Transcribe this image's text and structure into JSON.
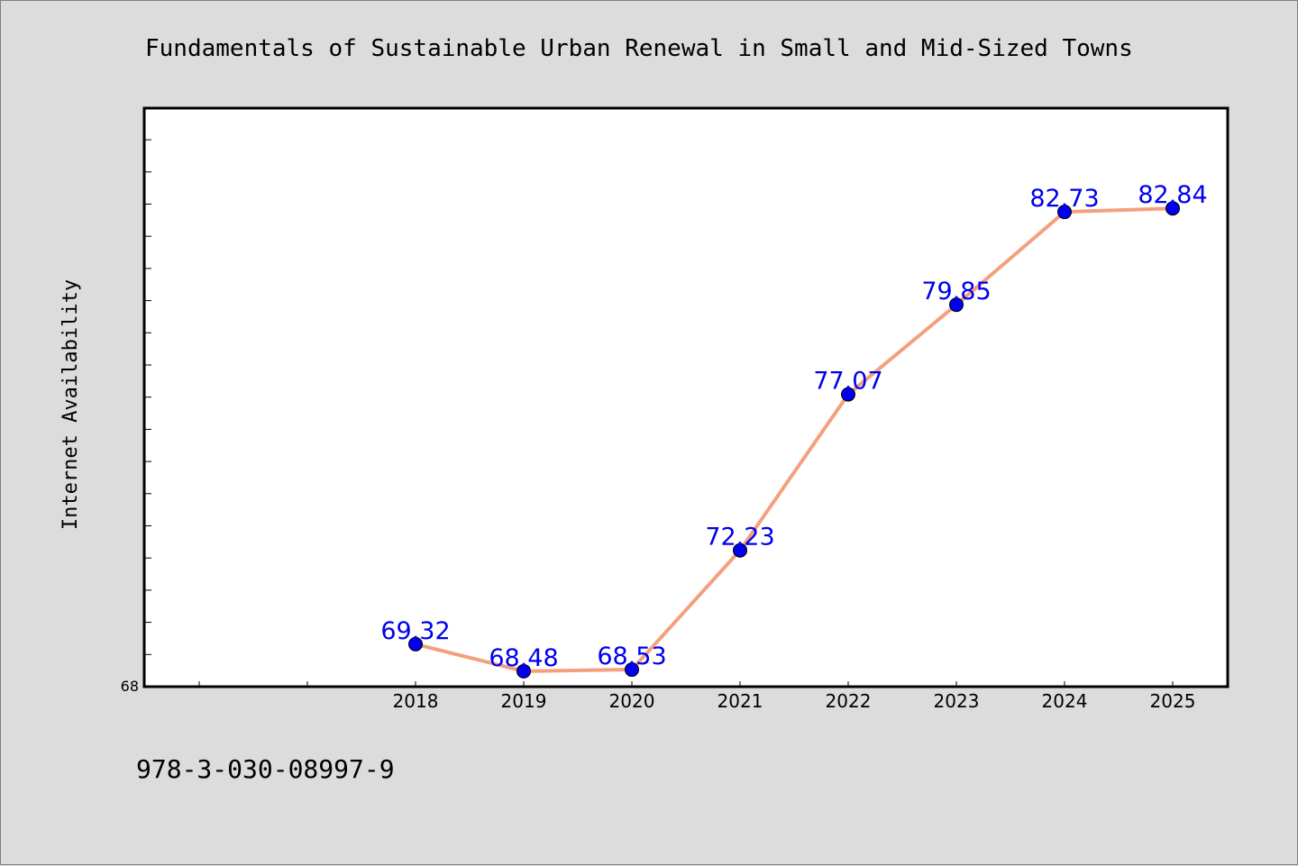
{
  "chart_data": {
    "type": "line",
    "title": "Fundamentals of Sustainable Urban Renewal in Small and Mid-Sized Towns",
    "xlabel": "",
    "ylabel": "Internet Availability",
    "categories": [
      "2018",
      "2019",
      "2020",
      "2021",
      "2022",
      "2023",
      "2024",
      "2025"
    ],
    "series": [
      {
        "values": [
          69.32,
          68.48,
          68.53,
          72.23,
          77.07,
          79.85,
          82.73,
          82.84
        ]
      }
    ],
    "data_labels": [
      "69.32",
      "68.48",
      "68.53",
      "72.23",
      "77.07",
      "79.85",
      "82.73",
      "82.84"
    ],
    "ylim": [
      68,
      85.95
    ],
    "y_tick_labels": [
      "68"
    ],
    "grid": false,
    "legend": "none",
    "colors": {
      "line": "#f4a07e",
      "marker": "#0000ee",
      "data_label": "#0000ee",
      "plot_background": "#ffffff",
      "page_background": "#dcdcdc"
    }
  },
  "footer": {
    "isbn": "978-3-030-08997-9"
  }
}
